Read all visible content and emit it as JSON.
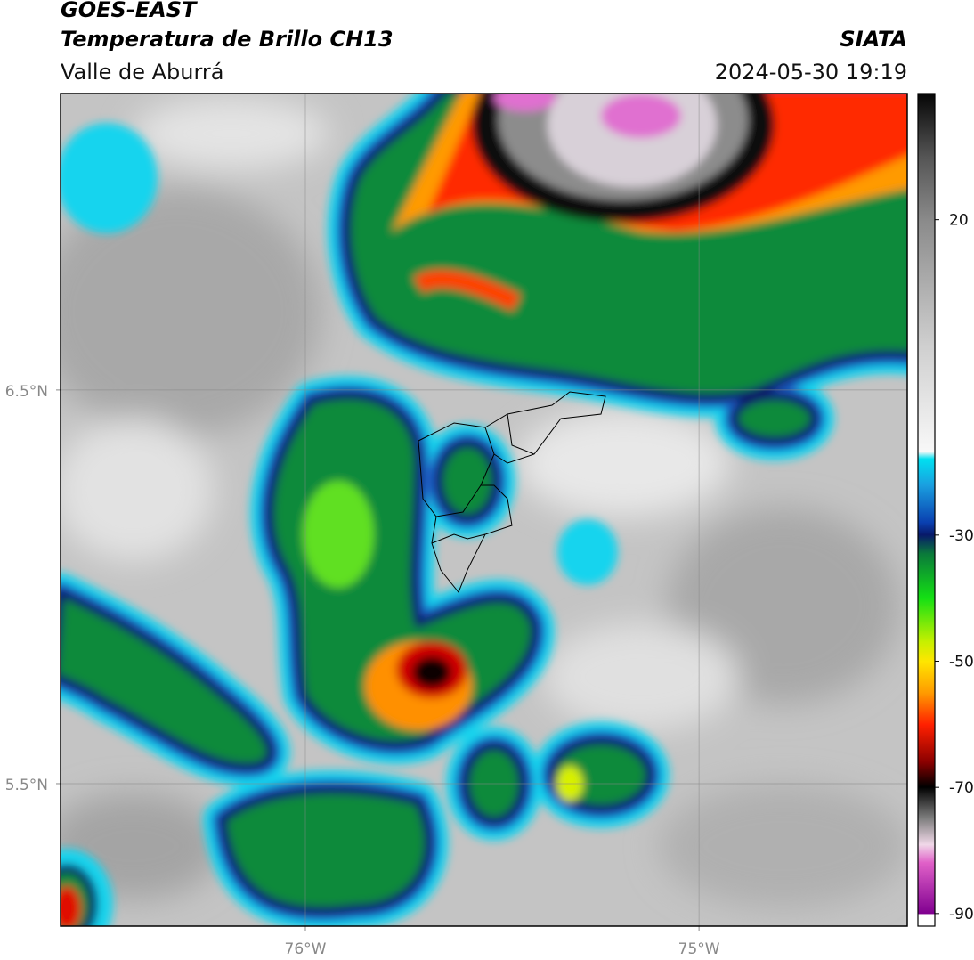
{
  "header": {
    "title": "GOES-EAST",
    "subtitle": "Temperatura de Brillo CH13",
    "region": "Valle de Aburrá",
    "org": "SIATA",
    "datetime": "2024-05-30 19:19"
  },
  "map": {
    "lon_range": [
      -76.622,
      -74.471
    ],
    "lat_range": [
      5.138,
      7.253
    ],
    "lon_ticks": [
      {
        "value": -76,
        "label": "76°W"
      },
      {
        "value": -75,
        "label": "75°W"
      }
    ],
    "lat_ticks": [
      {
        "value": 6.5,
        "label": "6.5°N"
      },
      {
        "value": 5.5,
        "label": "5.5°N"
      }
    ]
  },
  "colorbar": {
    "range": [
      -92,
      40
    ],
    "ticks": [
      20,
      -30,
      -50,
      -70,
      -90
    ]
  }
}
